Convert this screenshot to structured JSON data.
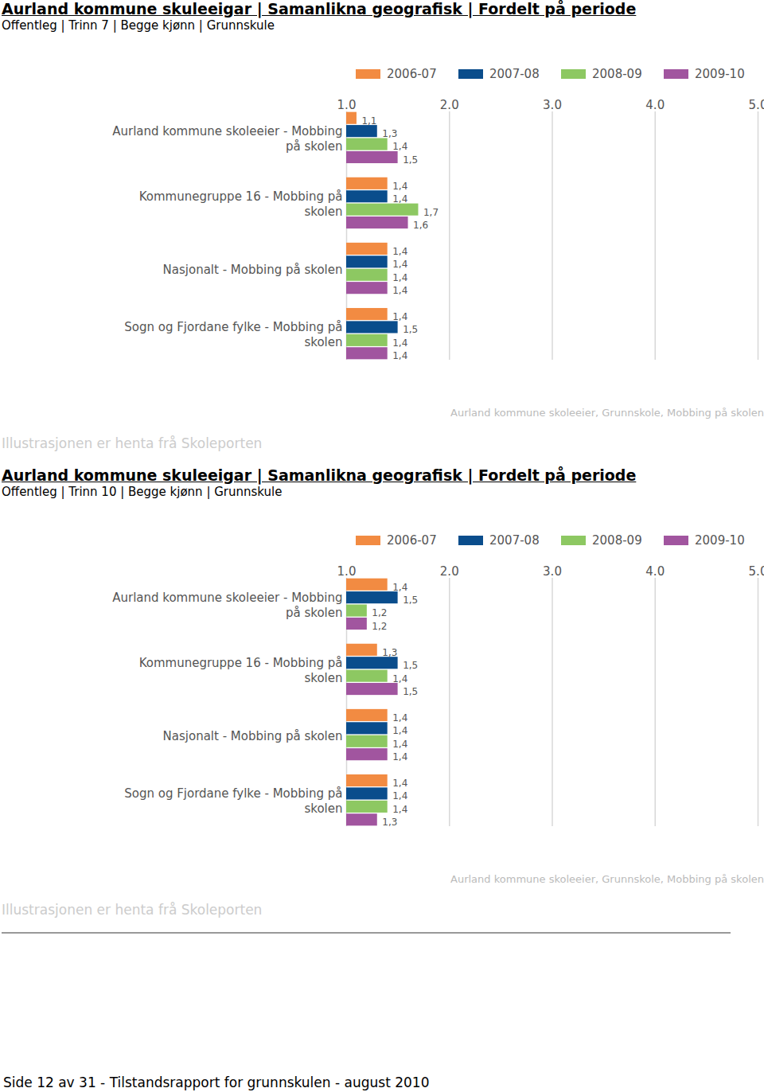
{
  "chart_data": [
    {
      "type": "bar",
      "orientation": "horizontal",
      "title": "Aurland kommune skuleeigar | Samanlikna geografisk | Fordelt på periode",
      "subtitle": "Offentleg | Trinn 7 | Begge kjønn | Grunnskule",
      "categories": [
        "Aurland kommune skoleeier - Mobbing på skolen",
        "Kommunegruppe 16 - Mobbing på skolen",
        "Nasjonalt - Mobbing på skolen",
        "Sogn og Fjordane fylke - Mobbing på skolen"
      ],
      "series": [
        {
          "name": "2006-07",
          "color": "#f28b42",
          "values": [
            1.1,
            1.4,
            1.4,
            1.4
          ],
          "value_labels": [
            "1,1",
            "1,4",
            "1,4",
            "1,4"
          ]
        },
        {
          "name": "2007-08",
          "color": "#0a4d8c",
          "values": [
            1.3,
            1.4,
            1.4,
            1.5
          ],
          "value_labels": [
            "1,3",
            "1,4",
            "1,4",
            "1,5"
          ]
        },
        {
          "name": "2008-09",
          "color": "#8dc862",
          "values": [
            1.4,
            1.7,
            1.4,
            1.4
          ],
          "value_labels": [
            "1,4",
            "1,7",
            "1,4",
            "1,4"
          ]
        },
        {
          "name": "2009-10",
          "color": "#a1559f",
          "values": [
            1.5,
            1.6,
            1.4,
            1.4
          ],
          "value_labels": [
            "1,5",
            "1,6",
            "1,4",
            "1,4"
          ]
        }
      ],
      "xlim": [
        1,
        5
      ],
      "xticks": [
        1,
        2,
        3,
        4,
        5
      ],
      "grid": true,
      "data_labels": true,
      "legend": "top",
      "annotation": "Aurland kommune skoleeier, Grunnskole, Mobbing på skolen",
      "caption": "Illustrasjonen er henta frå Skoleporten"
    },
    {
      "type": "bar",
      "orientation": "horizontal",
      "title": "Aurland kommune skuleeigar | Samanlikna geografisk | Fordelt på periode",
      "subtitle": "Offentleg | Trinn 10 | Begge kjønn | Grunnskule",
      "categories": [
        "Aurland kommune skoleeier - Mobbing på skolen",
        "Kommunegruppe 16 - Mobbing på skolen",
        "Nasjonalt - Mobbing på skolen",
        "Sogn og Fjordane fylke - Mobbing på skolen"
      ],
      "series": [
        {
          "name": "2006-07",
          "color": "#f28b42",
          "values": [
            1.4,
            1.3,
            1.4,
            1.4
          ],
          "value_labels": [
            "1,4",
            "1,3",
            "1,4",
            "1,4"
          ]
        },
        {
          "name": "2007-08",
          "color": "#0a4d8c",
          "values": [
            1.5,
            1.5,
            1.4,
            1.4
          ],
          "value_labels": [
            "1,5",
            "1,5",
            "1,4",
            "1,4"
          ]
        },
        {
          "name": "2008-09",
          "color": "#8dc862",
          "values": [
            1.2,
            1.4,
            1.4,
            1.4
          ],
          "value_labels": [
            "1,2",
            "1,4",
            "1,4",
            "1,4"
          ]
        },
        {
          "name": "2009-10",
          "color": "#a1559f",
          "values": [
            1.2,
            1.5,
            1.4,
            1.3
          ],
          "value_labels": [
            "1,2",
            "1,5",
            "1,4",
            "1,3"
          ]
        }
      ],
      "xlim": [
        1,
        5
      ],
      "xticks": [
        1,
        2,
        3,
        4,
        5
      ],
      "grid": true,
      "data_labels": true,
      "legend": "top",
      "annotation": "Aurland kommune skoleeier, Grunnskole, Mobbing på skolen",
      "caption": "Illustrasjonen er henta frå Skoleporten"
    }
  ],
  "footer": "Side 12 av 31 - Tilstandsrapport for grunnskulen - august 2010"
}
